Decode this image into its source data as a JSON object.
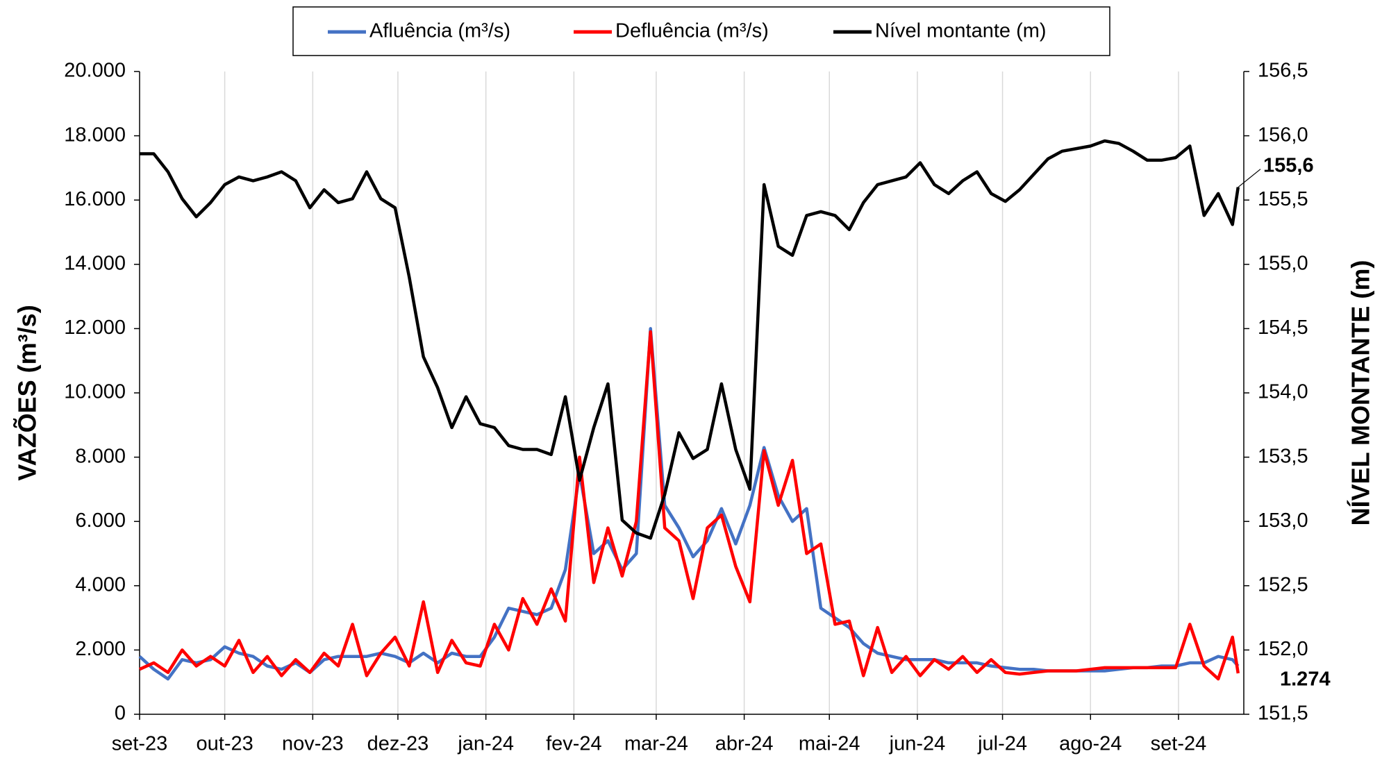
{
  "chart_data": {
    "type": "line",
    "x": [
      0,
      5,
      10,
      15,
      20,
      25,
      30,
      35,
      40,
      45,
      50,
      55,
      60,
      65,
      70,
      75,
      80,
      85,
      90,
      95,
      100,
      105,
      110,
      115,
      120,
      125,
      130,
      135,
      140,
      145,
      150,
      155,
      160,
      165,
      170,
      175,
      180,
      185,
      190,
      195,
      200,
      205,
      210,
      215,
      220,
      225,
      230,
      235,
      240,
      245,
      250,
      255,
      260,
      265,
      270,
      275,
      280,
      285,
      290,
      295,
      300,
      305,
      310,
      315,
      320,
      325,
      330,
      335,
      340,
      345,
      350,
      355,
      360,
      365,
      370,
      375,
      380,
      385,
      387
    ],
    "xlim": [
      0,
      389
    ],
    "xticks": [
      {
        "value": 0,
        "label": "set-23"
      },
      {
        "value": 30,
        "label": "out-23"
      },
      {
        "value": 61,
        "label": "nov-23"
      },
      {
        "value": 91,
        "label": "dez-23"
      },
      {
        "value": 122,
        "label": "jan-24"
      },
      {
        "value": 153,
        "label": "fev-24"
      },
      {
        "value": 182,
        "label": "mar-24"
      },
      {
        "value": 213,
        "label": "abr-24"
      },
      {
        "value": 243,
        "label": "mai-24"
      },
      {
        "value": 274,
        "label": "jun-24"
      },
      {
        "value": 304,
        "label": "jul-24"
      },
      {
        "value": 335,
        "label": "ago-24"
      },
      {
        "value": 366,
        "label": "set-24"
      }
    ],
    "ylabel": "VAZÕES (m³/s)",
    "ylim": [
      0,
      20000
    ],
    "yticks": [
      0,
      {
        "value": 2000,
        "label": "2.000"
      },
      {
        "value": 4000,
        "label": "4.000"
      },
      {
        "value": 6000,
        "label": "6.000"
      },
      {
        "value": 8000,
        "label": "8.000"
      },
      {
        "value": 10000,
        "label": "10.000"
      },
      {
        "value": 12000,
        "label": "12.000"
      },
      {
        "value": 14000,
        "label": "14.000"
      },
      {
        "value": 16000,
        "label": "16.000"
      },
      {
        "value": 18000,
        "label": "18.000"
      },
      {
        "value": 20000,
        "label": "20.000"
      }
    ],
    "y2label": "NÍVEL MONTANTE (m)",
    "y2lim": [
      151.5,
      156.5
    ],
    "y2ticks": [
      {
        "value": 151.5,
        "label": "151,5"
      },
      {
        "value": 152,
        "label": "152,0"
      },
      {
        "value": 152.5,
        "label": "152,5"
      },
      {
        "value": 153,
        "label": "153,0"
      },
      {
        "value": 153.5,
        "label": "153,5"
      },
      {
        "value": 154,
        "label": "154,0"
      },
      {
        "value": 154.5,
        "label": "154,5"
      },
      {
        "value": 155,
        "label": "155,0"
      },
      {
        "value": 155.5,
        "label": "155,5"
      },
      {
        "value": 156,
        "label": "156,0"
      },
      {
        "value": 156.5,
        "label": "156,5"
      }
    ],
    "grid": "x",
    "legend": "top",
    "series": [
      {
        "name": "Afluência (m³/s)",
        "color": "#4472c4",
        "values": [
          1800,
          1400,
          1100,
          1700,
          1600,
          1700,
          2100,
          1900,
          1800,
          1500,
          1400,
          1600,
          1300,
          1700,
          1800,
          1800,
          1800,
          1900,
          1800,
          1600,
          1900,
          1600,
          1900,
          1800,
          1800,
          2400,
          3300,
          3200,
          3100,
          3300,
          4500,
          7500,
          5000,
          5400,
          4500,
          5000,
          12000,
          6500,
          5800,
          4900,
          5400,
          6400,
          5300,
          6500,
          8300,
          6800,
          6000,
          6400,
          3300,
          3000,
          2700,
          2200,
          1900,
          1800,
          1700,
          1700,
          1700,
          1600,
          1600,
          1600,
          1500,
          1450,
          1400,
          1400,
          1350,
          1350,
          1350,
          1350,
          1350,
          1400,
          1450,
          1450,
          1500,
          1500,
          1600,
          1600,
          1800,
          1700,
          1500
        ]
      },
      {
        "name": "Defluência (m³/s)",
        "color": "#ff0000",
        "values": [
          1400,
          1600,
          1300,
          2000,
          1500,
          1800,
          1500,
          2300,
          1300,
          1800,
          1200,
          1700,
          1300,
          1900,
          1500,
          2800,
          1200,
          1900,
          2400,
          1500,
          3500,
          1300,
          2300,
          1600,
          1500,
          2800,
          2000,
          3600,
          2800,
          3900,
          2900,
          8000,
          4100,
          5800,
          4300,
          6000,
          11900,
          5800,
          5400,
          3600,
          5800,
          6200,
          4600,
          3500,
          8200,
          6500,
          7900,
          5000,
          5300,
          2800,
          2900,
          1200,
          2700,
          1300,
          1800,
          1200,
          1700,
          1400,
          1800,
          1300,
          1700,
          1300,
          1250,
          1300,
          1350,
          1350,
          1350,
          1400,
          1450,
          1450,
          1450,
          1450,
          1450,
          1450,
          2800,
          1500,
          1100,
          2400,
          1274
        ],
        "end_label": "1.274"
      },
      {
        "name": "Nível montante (m)",
        "color": "#000000",
        "axis": "y2",
        "values": [
          155.86,
          155.86,
          155.72,
          155.51,
          155.37,
          155.48,
          155.62,
          155.68,
          155.65,
          155.68,
          155.72,
          155.65,
          155.44,
          155.58,
          155.48,
          155.51,
          155.72,
          155.51,
          155.44,
          154.9,
          154.28,
          154.04,
          153.73,
          153.97,
          153.76,
          153.73,
          153.59,
          153.56,
          153.56,
          153.52,
          153.97,
          153.32,
          153.73,
          154.07,
          153.01,
          152.91,
          152.87,
          153.21,
          153.69,
          153.49,
          153.56,
          154.07,
          153.56,
          153.25,
          155.62,
          155.14,
          155.07,
          155.38,
          155.41,
          155.38,
          155.27,
          155.48,
          155.62,
          155.65,
          155.68,
          155.79,
          155.62,
          155.55,
          155.65,
          155.72,
          155.55,
          155.49,
          155.58,
          155.7,
          155.82,
          155.88,
          155.9,
          155.92,
          155.96,
          155.94,
          155.88,
          155.81,
          155.81,
          155.83,
          155.92,
          155.38,
          155.55,
          155.31,
          155.6
        ],
        "end_label": "155,6"
      }
    ]
  }
}
